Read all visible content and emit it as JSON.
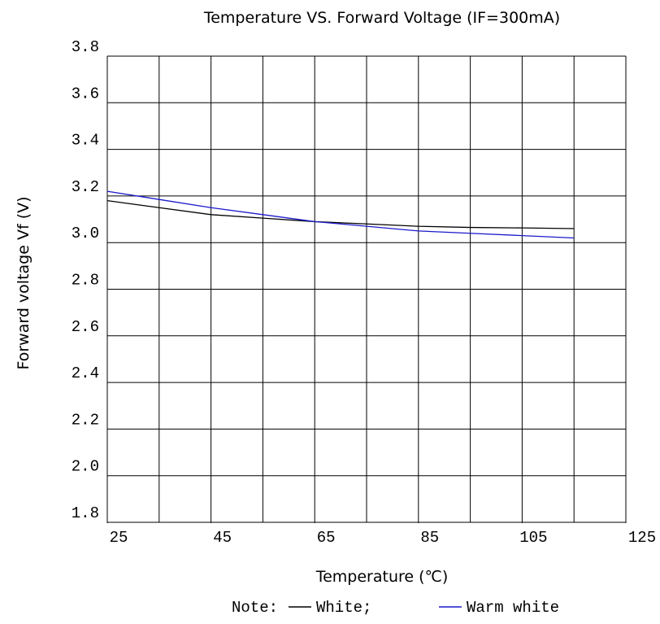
{
  "chart_data": {
    "type": "line",
    "title": "Temperature  VS. Forward Voltage (IF=300mA)",
    "xlabel": "Temperature (℃)",
    "ylabel": "Forward voltage  Vf (V)",
    "x": [
      25,
      35,
      45,
      55,
      65,
      75,
      85,
      95,
      105,
      115
    ],
    "series": [
      {
        "name": "White",
        "color": "#000000",
        "values": [
          3.18,
          3.15,
          3.12,
          3.105,
          3.09,
          3.08,
          3.07,
          3.065,
          3.063,
          3.06
        ]
      },
      {
        "name": "Warm white",
        "color": "#1a1acc",
        "values": [
          3.22,
          3.185,
          3.15,
          3.12,
          3.09,
          3.07,
          3.05,
          3.04,
          3.03,
          3.02
        ]
      }
    ],
    "xlim": [
      25,
      125
    ],
    "xticks": [
      25,
      45,
      65,
      85,
      105,
      125
    ],
    "ylim": [
      1.8,
      3.8
    ],
    "yticks": [
      {
        "value": 1.8,
        "label": "1.8"
      },
      {
        "value": 2,
        "label": "2.0"
      },
      {
        "value": 2.2,
        "label": "2.2"
      },
      {
        "value": 2.4,
        "label": "2.4"
      },
      {
        "value": 2.6,
        "label": "2.6"
      },
      {
        "value": 2.8,
        "label": "2.8"
      },
      {
        "value": 3,
        "label": "3.0"
      },
      {
        "value": 3.2,
        "label": "3.2"
      },
      {
        "value": 3.4,
        "label": "3.4"
      },
      {
        "value": 3.6,
        "label": "3.6"
      },
      {
        "value": 3.8,
        "label": "3.8"
      }
    ],
    "grid": true,
    "legend_prefix": "Note:",
    "legend_separator": ";"
  }
}
